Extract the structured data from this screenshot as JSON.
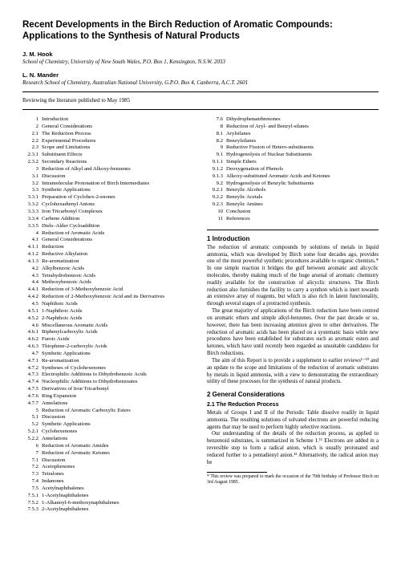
{
  "title": "Recent Developments in the Birch Reduction of Aromatic Compounds: Applications to the Synthesis of Natural Products",
  "authors": [
    {
      "name": "J. M. Hook",
      "affiliation": "School of Chemistry, University of New South Wales, P.O. Box 1, Kensington, N.S.W. 2033"
    },
    {
      "name": "L. N. Mander",
      "affiliation": "Research School of Chemistry, Australian National University, G.P.O. Box 4, Canberra, A.C.T. 2601"
    }
  ],
  "reviewing_line": "Reviewing the literature published to May 1985",
  "toc_left": [
    {
      "n": "1",
      "t": "Introduction"
    },
    {
      "n": "2",
      "t": "General Considerations"
    },
    {
      "n": "2.1",
      "t": "The Reduction Process"
    },
    {
      "n": "2.2",
      "t": "Experimental Procedures"
    },
    {
      "n": "2.3",
      "t": "Scope and Limitations"
    },
    {
      "n": "2.3.1",
      "t": "Substituent Effects"
    },
    {
      "n": "2.3.2",
      "t": "Secondary Reactions"
    },
    {
      "n": "3",
      "t": "Reduction of Alkyl and Alkoxy-benzenes"
    },
    {
      "n": "3.1",
      "t": "Discussion"
    },
    {
      "n": "3.2",
      "t": "Intramolecular Protonation of Birch Intermediates"
    },
    {
      "n": "3.3",
      "t": "Synthetic Applications"
    },
    {
      "n": "3.3.1",
      "t": "Preparation of Cyclohex-2-enones"
    },
    {
      "n": "3.3.2",
      "t": "Cyclohexadienyl Anions"
    },
    {
      "n": "3.3.3",
      "t": "Iron Tricarbonyl Complexes"
    },
    {
      "n": "3.3.4",
      "t": "Carbene Addition"
    },
    {
      "n": "3.3.5",
      "t": "Diels–Alder Cycloaddition"
    },
    {
      "n": "4",
      "t": "Reduction of Aromatic Acids"
    },
    {
      "n": "4.1",
      "t": "General Considerations"
    },
    {
      "n": "4.1.1",
      "t": "Reduction"
    },
    {
      "n": "4.1.2",
      "t": "Reductive Alkylation"
    },
    {
      "n": "4.1.3",
      "t": "Re-aromatization"
    },
    {
      "n": "4.2",
      "t": "Alkylbenzoic Acids"
    },
    {
      "n": "4.3",
      "t": "Tetrahydrobenzoic Acids"
    },
    {
      "n": "4.4",
      "t": "Methoxybenzoic Acids"
    },
    {
      "n": "4.4.1",
      "t": "Reduction of 3-Methoxybenzoic Acid"
    },
    {
      "n": "4.4.2",
      "t": "Reduction of 2-Methoxybenzoic Acid and its Derivatives"
    },
    {
      "n": "4.5",
      "t": "Naphthoic Acids"
    },
    {
      "n": "4.5.1",
      "t": "1-Naphthoic Acids"
    },
    {
      "n": "4.5.2",
      "t": "2-Naphthoic Acids"
    },
    {
      "n": "4.6",
      "t": "Miscellaneous Aromatic Acids"
    },
    {
      "n": "4.6.1",
      "t": "Biphenylcarboxylic Acids"
    },
    {
      "n": "4.6.2",
      "t": "Furoic Acids"
    },
    {
      "n": "4.6.3",
      "t": "Thiophene-2-carboxylic Acids"
    },
    {
      "n": "4.7",
      "t": "Synthetic Applications"
    },
    {
      "n": "4.7.1",
      "t": "Re-aromatization"
    },
    {
      "n": "4.7.2",
      "t": "Syntheses of Cyclohexenones"
    },
    {
      "n": "4.7.3",
      "t": "Electrophilic Additions to Dihydrobenzoic Acids"
    },
    {
      "n": "4.7.4",
      "t": "Nucleophilic Additions to Dihydrobenzoates"
    },
    {
      "n": "4.7.5",
      "t": "Derivatives of Iron Tricarbonyl"
    },
    {
      "n": "4.7.6",
      "t": "Ring Expansion"
    },
    {
      "n": "4.7.7",
      "t": "Annelations"
    },
    {
      "n": "5",
      "t": "Reduction of Aromatic Carboxylic Esters"
    },
    {
      "n": "5.1",
      "t": "Discussion"
    },
    {
      "n": "5.2",
      "t": "Synthetic Applications"
    },
    {
      "n": "5.2.1",
      "t": "Cyclohexenones"
    },
    {
      "n": "5.2.2",
      "t": "Annelations"
    },
    {
      "n": "6",
      "t": "Reduction of Aromatic Amides"
    },
    {
      "n": "7",
      "t": "Reduction of Aromatic Ketones"
    },
    {
      "n": "7.1",
      "t": "Discussion"
    },
    {
      "n": "7.2",
      "t": "Acetophenones"
    },
    {
      "n": "7.3",
      "t": "Tetralones"
    },
    {
      "n": "7.4",
      "t": "Indanones"
    },
    {
      "n": "7.5",
      "t": "Acetylnaphthalenes"
    },
    {
      "n": "7.5.1",
      "t": "1-Acetylnaphthalenes"
    },
    {
      "n": "7.5.2",
      "t": "1-Alkanoyl-6-methoxynaphthalenes"
    },
    {
      "n": "7.5.3",
      "t": "2-Acetylnaphthalenes"
    }
  ],
  "toc_right": [
    {
      "n": "7.6",
      "t": "Dihydrophenanthrenones"
    },
    {
      "n": "8",
      "t": "Reduction of Aryl- and Benzyl-silanes"
    },
    {
      "n": "8.1",
      "t": "Arylsilanes"
    },
    {
      "n": "8.2",
      "t": "Benzylsilanes"
    },
    {
      "n": "9",
      "t": "Reductive Fission of Hetero-substituents"
    },
    {
      "n": "9.1",
      "t": "Hydrogenolysis of Nuclear Substituents"
    },
    {
      "n": "9.1.1",
      "t": "Simple Ethers"
    },
    {
      "n": "9.1.2",
      "t": "Deoxygenation of Phenols"
    },
    {
      "n": "9.1.3",
      "t": "Alkoxy-substituted Aromatic Acids and Ketones"
    },
    {
      "n": "9.2",
      "t": "Hydrogenolysis of Benzylic Substituents"
    },
    {
      "n": "9.2.1",
      "t": "Benzylic Alcohols"
    },
    {
      "n": "9.2.2",
      "t": "Benzylic Acetals"
    },
    {
      "n": "9.2.3",
      "t": "Benzylic Amines"
    },
    {
      "n": "10",
      "t": "Conclusion"
    },
    {
      "n": "11",
      "t": "References"
    }
  ],
  "sections": {
    "s1_heading": "1 Introduction",
    "s1_p1": "The reduction of aromatic compounds by solutions of metals in liquid ammonia, which was developed by Birch some four decades ago, provides one of the most powerful synthetic procedures available to organic chemists.* In one simple reaction it bridges the gulf between aromatic and alicyclic molecules, thereby making much of the huge arsenal of aromatic chemistry readily available for the construction of alicyclic structures. The Birch reduction also furnishes the facility to carry a synthon which is inert towards an extensive array of reagents, but which is also rich in latent functionality, through several stages of a protracted synthesis.",
    "s1_p2": "The great majority of applications of the Birch reduction have been centred on aromatic ethers and simple alkyl-benzenes. Over the past decade or so, however, there has been increasing attention given to other derivatives. The reduction of aromatic acids has been placed on a systematic basis while new procedures have been established for substrates such as aromatic esters and ketones, which have until recently been regarded as unsuitable candidates for Birch reductions.",
    "s1_p3": "The aim of this Report is to provide a supplement to earlier reviews¹⁻¹⁰ and an update to the scope and limitations of the reduction of aromatic substrates by metals in liquid ammonia, with a view to demonstrating the extraordinary utility of these processes for the synthesis of natural products.",
    "s2_heading": "2 General Considerations",
    "s2_1_heading": "2.1 The Reduction Process",
    "s2_1_p1": "Metals of Groups I and II of the Periodic Table dissolve readily in liquid ammonia. The resulting solutions of solvated electrons are powerful reducing agents that may be used to perform highly selective reactions.",
    "s2_1_p2": "Our understanding of the details of the reduction process, as applied to benzenoid substrates, is summarized in Scheme 1.¹¹ Electrons are added in a reversible step to form a radical anion, which is usually protonated and reduced further to a pentadienyl anion.¹² Alternatively, the radical anion may be"
  },
  "footnote": "* This review was prepared to mark the occasion of the 70th birthday of Professor Birch on 3rd August 1985."
}
